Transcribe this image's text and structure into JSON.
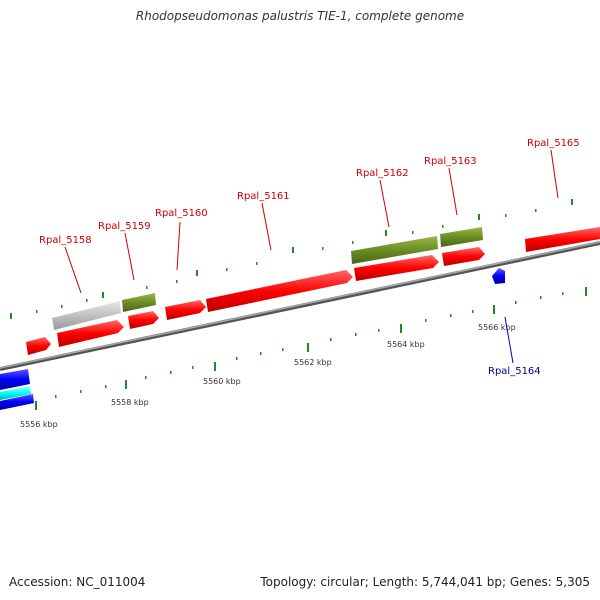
{
  "title": "Rhodopseudomonas palustris TIE-1, complete genome",
  "footer": {
    "accession": "Accession: NC_011004",
    "summary": "Topology: circular; Length: 5,744,041 bp; Genes: 5,305"
  },
  "colors": {
    "forward_gene": "#ff0000",
    "rna_gene": "#6b8e23",
    "pseudo_gene": "#c0c0c0",
    "reverse_gene": "#0000ff",
    "highlight_gene": "#00ffff",
    "backbone": "#808080",
    "tick": "#228b22",
    "forward_label": "#cc0000",
    "reverse_label": "#00008b"
  },
  "tick_labels": [
    "5556 kbp",
    "5558 kbp",
    "5560 kbp",
    "5562 kbp",
    "5564 kbp",
    "5566 kbp"
  ],
  "gene_labels": [
    {
      "id": "Rpal_5158",
      "strand": "forward"
    },
    {
      "id": "Rpal_5159",
      "strand": "forward"
    },
    {
      "id": "Rpal_5160",
      "strand": "forward"
    },
    {
      "id": "Rpal_5161",
      "strand": "forward"
    },
    {
      "id": "Rpal_5162",
      "strand": "forward"
    },
    {
      "id": "Rpal_5163",
      "strand": "forward"
    },
    {
      "id": "Rpal_5164",
      "strand": "reverse"
    },
    {
      "id": "Rpal_5165",
      "strand": "forward"
    }
  ]
}
